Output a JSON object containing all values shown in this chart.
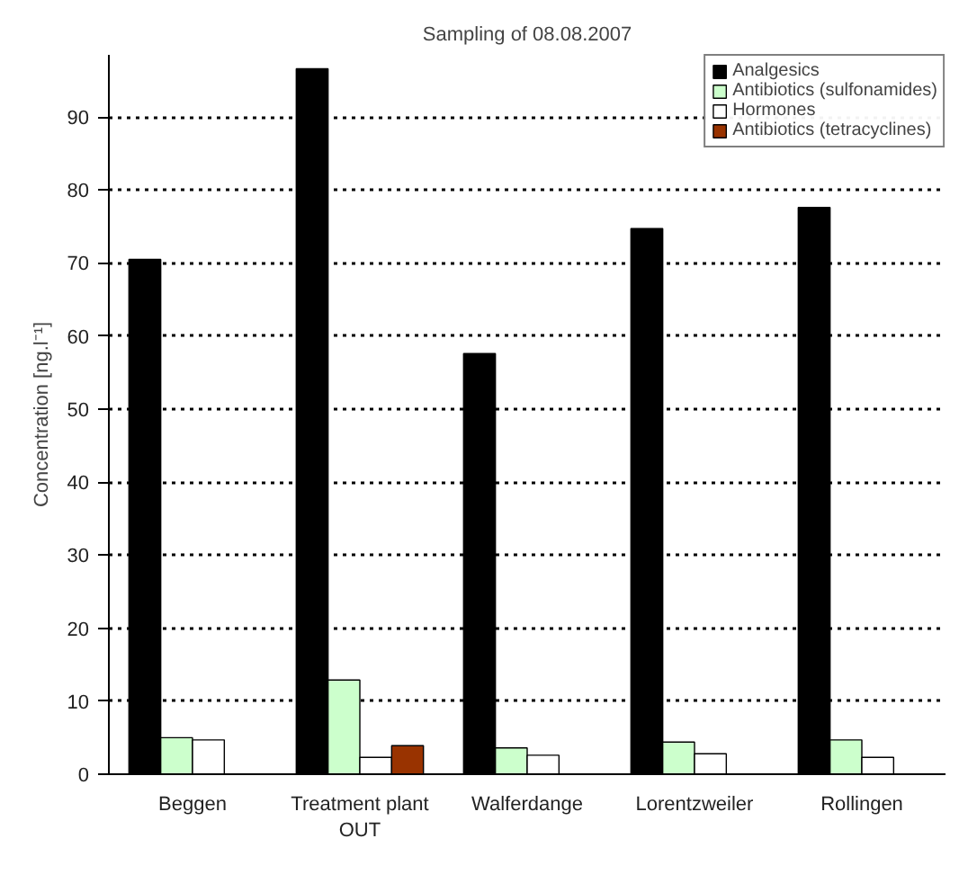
{
  "chart_data": {
    "type": "bar",
    "title": "Sampling of 08.08.2007",
    "ylabel": "Concentration [ng.l⁻¹]",
    "categories": [
      "Beggen",
      "Treatment plant OUT",
      "Walferdange",
      "Lorentzweiler",
      "Rollingen"
    ],
    "series": [
      {
        "name": "Analgesics",
        "color": "#000000",
        "values": [
          70.5,
          96.6,
          57.6,
          74.7,
          77.6
        ]
      },
      {
        "name": "Antibiotics (sulfonamides)",
        "color": "#ccffcc",
        "values": [
          5.0,
          12.9,
          3.6,
          4.4,
          4.7
        ]
      },
      {
        "name": "Hormones",
        "color": "#ffffff",
        "values": [
          4.7,
          2.3,
          2.6,
          2.8,
          2.3
        ]
      },
      {
        "name": "Antibiotics (tetracyclines)",
        "color": "#993300",
        "values": [
          null,
          3.9,
          null,
          null,
          null
        ]
      }
    ],
    "ylim": [
      0,
      98.5
    ],
    "yticks": [
      0,
      10,
      20,
      30,
      40,
      50,
      60,
      70,
      80,
      90
    ],
    "grid": "y",
    "legend": "top right"
  }
}
